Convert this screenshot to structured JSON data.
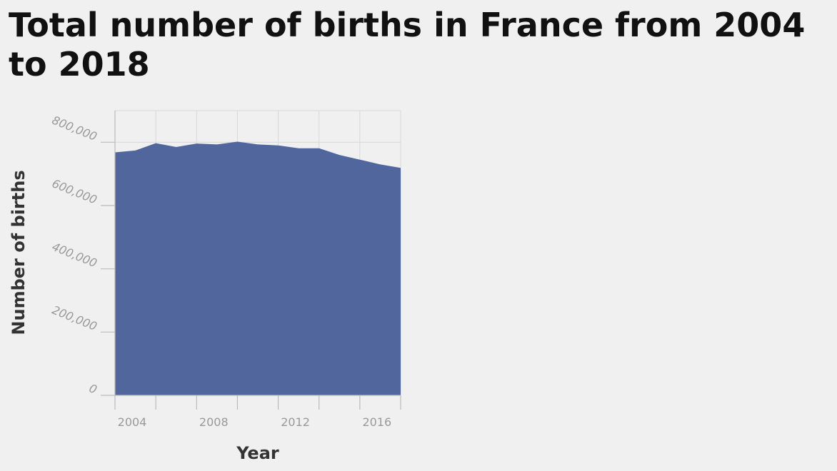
{
  "chart_data": {
    "type": "area",
    "title": "Total number of births in France from 2004 to 2018",
    "xlabel": "Year",
    "ylabel": "Number of births",
    "x": [
      2004,
      2005,
      2006,
      2007,
      2008,
      2009,
      2010,
      2011,
      2012,
      2013,
      2014,
      2015,
      2016,
      2017,
      2018
    ],
    "values": [
      768000,
      774000,
      797000,
      785000,
      796000,
      793000,
      802000,
      793000,
      790000,
      781000,
      781000,
      760000,
      745000,
      730000,
      719000
    ],
    "xlim": [
      2004,
      2018
    ],
    "ylim": [
      0,
      900000
    ],
    "xticks": [
      2004,
      2008,
      2012,
      2016
    ],
    "xtick_labels": [
      "2004",
      "2008",
      "2012",
      "2016"
    ],
    "yticks": [
      0,
      200000,
      400000,
      600000,
      800000
    ],
    "ytick_labels": [
      "0",
      "200,000",
      "400,000",
      "600,000",
      "800,000"
    ],
    "grid": true,
    "colors": {
      "area": "#52669e",
      "grid": "#d8d8d8",
      "axis": "#bbbbbb"
    }
  }
}
